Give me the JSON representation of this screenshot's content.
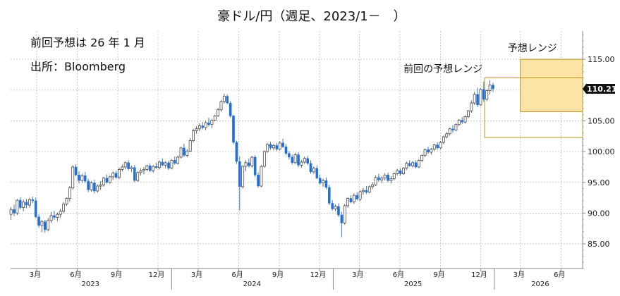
{
  "chart_data": {
    "type": "candlestick",
    "title": "豪ドル/円（週足、2023/1－　）",
    "notes": [
      "前回予想は 26 年 1 月",
      "出所：Bloomberg"
    ],
    "ylim": [
      81,
      119.6
    ],
    "y_ticks": [
      "85.00",
      "90.00",
      "95.00",
      "100.00",
      "105.00",
      "110.00",
      "115.00"
    ],
    "y_tick_values": [
      85,
      90,
      95,
      100,
      105,
      110,
      115
    ],
    "x_range": [
      "2023-01-01",
      "2026-07-20"
    ],
    "month_ticks": [
      {
        "date": "2023-03-01",
        "label": "3月"
      },
      {
        "date": "2023-06-01",
        "label": "6月"
      },
      {
        "date": "2023-09-01",
        "label": "9月"
      },
      {
        "date": "2023-12-01",
        "label": "12月"
      },
      {
        "date": "2024-03-01",
        "label": "3月"
      },
      {
        "date": "2024-06-01",
        "label": "6月"
      },
      {
        "date": "2024-09-01",
        "label": "9月"
      },
      {
        "date": "2024-12-01",
        "label": "12月"
      },
      {
        "date": "2025-03-01",
        "label": "3月"
      },
      {
        "date": "2025-06-01",
        "label": "6月"
      },
      {
        "date": "2025-09-01",
        "label": "9月"
      },
      {
        "date": "2025-12-01",
        "label": "12月"
      },
      {
        "date": "2026-03-01",
        "label": "3月"
      },
      {
        "date": "2026-06-01",
        "label": "6月"
      }
    ],
    "year_labels": [
      {
        "date": "2023-07-01",
        "label": "2023"
      },
      {
        "date": "2024-07-01",
        "label": "2024"
      },
      {
        "date": "2025-07-01",
        "label": "2025"
      },
      {
        "date": "2026-04-15",
        "label": "2026"
      }
    ],
    "last_value": "110.21",
    "last_price": 110.21,
    "ranges": [
      {
        "label": "前回の予想レンジ",
        "start": "2025-12-10",
        "end": "2026-07-20",
        "low": 102.3,
        "high": 112.0
      },
      {
        "label": "予想レンジ",
        "start": "2026-03-01",
        "end": "2026-07-20",
        "low": 106.5,
        "high": 115.0
      }
    ],
    "colors": {
      "up": "#ffffff",
      "down": "#1f6fd6",
      "range_fill": "#fbe4a6",
      "range_border": "#b8931c",
      "last_label_bg": "#111111"
    },
    "start_date": "2023-01-02",
    "weeks_per_candle": 1,
    "candles": [
      [
        89.8,
        91.0,
        88.9,
        90.6
      ],
      [
        90.6,
        91.4,
        89.5,
        90.0
      ],
      [
        90.0,
        92.3,
        89.7,
        92.1
      ],
      [
        92.1,
        92.6,
        90.6,
        90.9
      ],
      [
        90.9,
        92.2,
        90.3,
        91.8
      ],
      [
        91.8,
        92.3,
        90.8,
        91.3
      ],
      [
        91.3,
        92.5,
        90.9,
        92.2
      ],
      [
        92.2,
        92.7,
        91.6,
        92.0
      ],
      [
        92.0,
        92.5,
        89.2,
        89.4
      ],
      [
        89.4,
        89.8,
        87.6,
        88.0
      ],
      [
        88.0,
        88.9,
        86.9,
        88.6
      ],
      [
        88.6,
        88.9,
        86.8,
        87.3
      ],
      [
        87.3,
        89.2,
        87.0,
        88.8
      ],
      [
        88.8,
        90.2,
        88.4,
        89.6
      ],
      [
        89.6,
        90.4,
        88.9,
        89.3
      ],
      [
        89.3,
        90.1,
        88.7,
        89.8
      ],
      [
        89.8,
        90.7,
        89.2,
        90.3
      ],
      [
        90.3,
        91.8,
        90.0,
        91.5
      ],
      [
        91.5,
        92.6,
        91.2,
        92.4
      ],
      [
        92.4,
        94.4,
        91.9,
        94.1
      ],
      [
        94.1,
        97.8,
        93.8,
        97.5
      ],
      [
        97.5,
        97.9,
        96.0,
        96.2
      ],
      [
        96.2,
        96.8,
        94.8,
        95.3
      ],
      [
        95.3,
        96.4,
        94.9,
        96.1
      ],
      [
        96.1,
        96.7,
        94.9,
        95.2
      ],
      [
        95.2,
        95.6,
        93.4,
        93.8
      ],
      [
        93.8,
        95.2,
        93.5,
        94.9
      ],
      [
        94.9,
        95.4,
        93.2,
        93.6
      ],
      [
        93.6,
        94.7,
        93.3,
        94.4
      ],
      [
        94.4,
        95.2,
        93.8,
        94.6
      ],
      [
        94.6,
        95.9,
        94.3,
        95.7
      ],
      [
        95.7,
        96.3,
        94.8,
        95.0
      ],
      [
        95.0,
        96.1,
        94.8,
        95.9
      ],
      [
        95.9,
        96.8,
        95.4,
        96.5
      ],
      [
        96.5,
        96.9,
        95.6,
        95.8
      ],
      [
        95.8,
        97.4,
        95.5,
        97.1
      ],
      [
        97.1,
        97.9,
        96.8,
        97.5
      ],
      [
        97.5,
        98.4,
        97.1,
        98.2
      ],
      [
        98.2,
        98.6,
        96.9,
        97.2
      ],
      [
        97.2,
        97.7,
        96.7,
        97.4
      ],
      [
        97.4,
        97.8,
        95.0,
        95.3
      ],
      [
        95.3,
        96.8,
        95.1,
        96.6
      ],
      [
        96.6,
        97.3,
        96.1,
        96.9
      ],
      [
        96.9,
        97.5,
        96.3,
        97.1
      ],
      [
        97.1,
        97.9,
        96.8,
        97.7
      ],
      [
        97.7,
        98.1,
        96.7,
        96.9
      ],
      [
        96.9,
        97.8,
        96.6,
        97.6
      ],
      [
        97.6,
        98.2,
        97.2,
        97.4
      ],
      [
        97.4,
        98.6,
        97.1,
        98.3
      ],
      [
        98.3,
        98.9,
        97.6,
        97.8
      ],
      [
        97.8,
        98.4,
        97.3,
        98.2
      ],
      [
        98.2,
        98.5,
        97.0,
        97.3
      ],
      [
        97.3,
        98.8,
        97.1,
        98.6
      ],
      [
        98.6,
        99.2,
        97.9,
        98.1
      ],
      [
        98.1,
        99.4,
        97.9,
        99.1
      ],
      [
        99.1,
        100.8,
        98.9,
        100.6
      ],
      [
        100.6,
        101.3,
        99.1,
        99.4
      ],
      [
        99.4,
        100.4,
        99.1,
        100.1
      ],
      [
        100.1,
        102.2,
        99.9,
        101.8
      ],
      [
        101.8,
        103.7,
        101.5,
        103.4
      ],
      [
        103.4,
        104.1,
        102.9,
        103.7
      ],
      [
        103.7,
        104.6,
        103.3,
        104.2
      ],
      [
        104.2,
        104.8,
        103.6,
        103.9
      ],
      [
        103.9,
        105.0,
        103.5,
        104.7
      ],
      [
        104.7,
        105.5,
        104.1,
        104.4
      ],
      [
        104.4,
        105.3,
        103.8,
        105.1
      ],
      [
        105.1,
        106.0,
        104.9,
        105.8
      ],
      [
        105.8,
        107.1,
        105.6,
        106.8
      ],
      [
        106.8,
        108.4,
        106.5,
        108.1
      ],
      [
        108.1,
        109.4,
        107.8,
        109.0
      ],
      [
        109.0,
        109.3,
        107.7,
        107.9
      ],
      [
        107.9,
        108.2,
        105.5,
        105.8
      ],
      [
        105.8,
        106.0,
        101.2,
        101.5
      ],
      [
        101.5,
        101.8,
        98.0,
        98.4
      ],
      [
        98.4,
        99.2,
        90.4,
        94.3
      ],
      [
        94.3,
        97.8,
        94.0,
        97.6
      ],
      [
        97.6,
        98.6,
        96.8,
        98.2
      ],
      [
        98.2,
        98.9,
        97.4,
        97.7
      ],
      [
        97.7,
        99.3,
        97.4,
        99.1
      ],
      [
        99.1,
        99.4,
        95.9,
        96.2
      ],
      [
        96.2,
        96.6,
        94.1,
        94.4
      ],
      [
        94.4,
        97.8,
        94.2,
        97.6
      ],
      [
        97.6,
        100.2,
        97.4,
        100.0
      ],
      [
        100.0,
        101.4,
        99.8,
        101.2
      ],
      [
        101.2,
        101.6,
        100.3,
        100.6
      ],
      [
        100.6,
        101.3,
        100.2,
        101.0
      ],
      [
        101.0,
        101.4,
        100.1,
        100.4
      ],
      [
        100.4,
        101.7,
        100.2,
        101.4
      ],
      [
        101.4,
        102.1,
        100.6,
        100.8
      ],
      [
        100.8,
        101.2,
        99.4,
        99.7
      ],
      [
        99.7,
        100.1,
        98.7,
        99.1
      ],
      [
        99.1,
        99.5,
        97.9,
        98.2
      ],
      [
        98.2,
        99.8,
        98.0,
        99.5
      ],
      [
        99.5,
        99.9,
        97.5,
        97.8
      ],
      [
        97.8,
        98.6,
        97.4,
        98.3
      ],
      [
        98.3,
        99.2,
        98.0,
        98.9
      ],
      [
        98.9,
        99.3,
        97.8,
        98.1
      ],
      [
        98.1,
        98.6,
        96.4,
        96.7
      ],
      [
        96.7,
        97.6,
        96.4,
        97.3
      ],
      [
        97.3,
        97.8,
        95.5,
        95.7
      ],
      [
        95.7,
        96.3,
        94.6,
        94.9
      ],
      [
        94.9,
        95.6,
        94.3,
        95.3
      ],
      [
        95.3,
        95.8,
        93.9,
        94.2
      ],
      [
        94.2,
        94.6,
        91.3,
        91.6
      ],
      [
        91.6,
        92.1,
        90.4,
        90.7
      ],
      [
        90.7,
        91.4,
        90.3,
        91.1
      ],
      [
        91.1,
        91.6,
        89.4,
        89.7
      ],
      [
        89.7,
        90.2,
        86.1,
        88.4
      ],
      [
        88.4,
        91.5,
        88.1,
        91.2
      ],
      [
        91.2,
        92.6,
        90.9,
        92.4
      ],
      [
        92.4,
        92.9,
        91.6,
        91.8
      ],
      [
        91.8,
        93.2,
        91.5,
        92.9
      ],
      [
        92.9,
        93.4,
        92.1,
        92.3
      ],
      [
        92.3,
        93.7,
        92.0,
        93.5
      ],
      [
        93.5,
        94.1,
        93.0,
        93.7
      ],
      [
        93.7,
        94.4,
        93.1,
        93.4
      ],
      [
        93.4,
        94.5,
        93.2,
        94.3
      ],
      [
        94.3,
        95.0,
        93.9,
        94.6
      ],
      [
        94.6,
        96.1,
        94.4,
        95.8
      ],
      [
        95.8,
        96.4,
        95.1,
        95.4
      ],
      [
        95.4,
        96.0,
        94.9,
        95.7
      ],
      [
        95.7,
        96.5,
        95.3,
        96.2
      ],
      [
        96.2,
        96.6,
        95.0,
        95.3
      ],
      [
        95.3,
        96.0,
        94.8,
        95.6
      ],
      [
        95.6,
        96.6,
        95.3,
        96.4
      ],
      [
        96.4,
        97.2,
        96.1,
        96.9
      ],
      [
        96.9,
        97.3,
        96.1,
        96.4
      ],
      [
        96.4,
        97.5,
        96.2,
        97.3
      ],
      [
        97.3,
        98.4,
        97.0,
        98.1
      ],
      [
        98.1,
        98.6,
        97.5,
        97.7
      ],
      [
        97.7,
        98.5,
        97.4,
        98.2
      ],
      [
        98.2,
        98.6,
        97.3,
        97.5
      ],
      [
        97.5,
        98.8,
        97.3,
        98.6
      ],
      [
        98.6,
        99.6,
        98.3,
        99.4
      ],
      [
        99.4,
        100.5,
        99.1,
        100.3
      ],
      [
        100.3,
        100.8,
        99.6,
        99.9
      ],
      [
        99.9,
        100.6,
        99.5,
        100.4
      ],
      [
        100.4,
        101.3,
        100.1,
        101.1
      ],
      [
        101.1,
        101.5,
        100.3,
        100.6
      ],
      [
        100.6,
        101.7,
        100.4,
        101.5
      ],
      [
        101.5,
        102.6,
        101.2,
        102.4
      ],
      [
        102.4,
        103.2,
        102.1,
        102.9
      ],
      [
        102.9,
        103.9,
        102.6,
        103.7
      ],
      [
        103.7,
        104.3,
        103.1,
        103.5
      ],
      [
        103.5,
        104.6,
        103.3,
        104.4
      ],
      [
        104.4,
        105.3,
        104.1,
        105.1
      ],
      [
        105.1,
        105.6,
        104.5,
        104.8
      ],
      [
        104.8,
        105.9,
        104.6,
        105.7
      ],
      [
        105.7,
        106.8,
        105.4,
        106.6
      ],
      [
        106.6,
        108.3,
        106.3,
        107.9
      ],
      [
        107.9,
        109.7,
        107.6,
        109.3
      ],
      [
        109.3,
        110.4,
        107.2,
        107.6
      ],
      [
        107.6,
        110.3,
        107.4,
        110.1
      ],
      [
        110.1,
        111.4,
        108.1,
        108.5
      ],
      [
        108.5,
        110.1,
        108.2,
        109.9
      ],
      [
        109.9,
        111.6,
        109.3,
        110.8
      ],
      [
        110.8,
        111.2,
        109.7,
        110.21
      ]
    ]
  }
}
